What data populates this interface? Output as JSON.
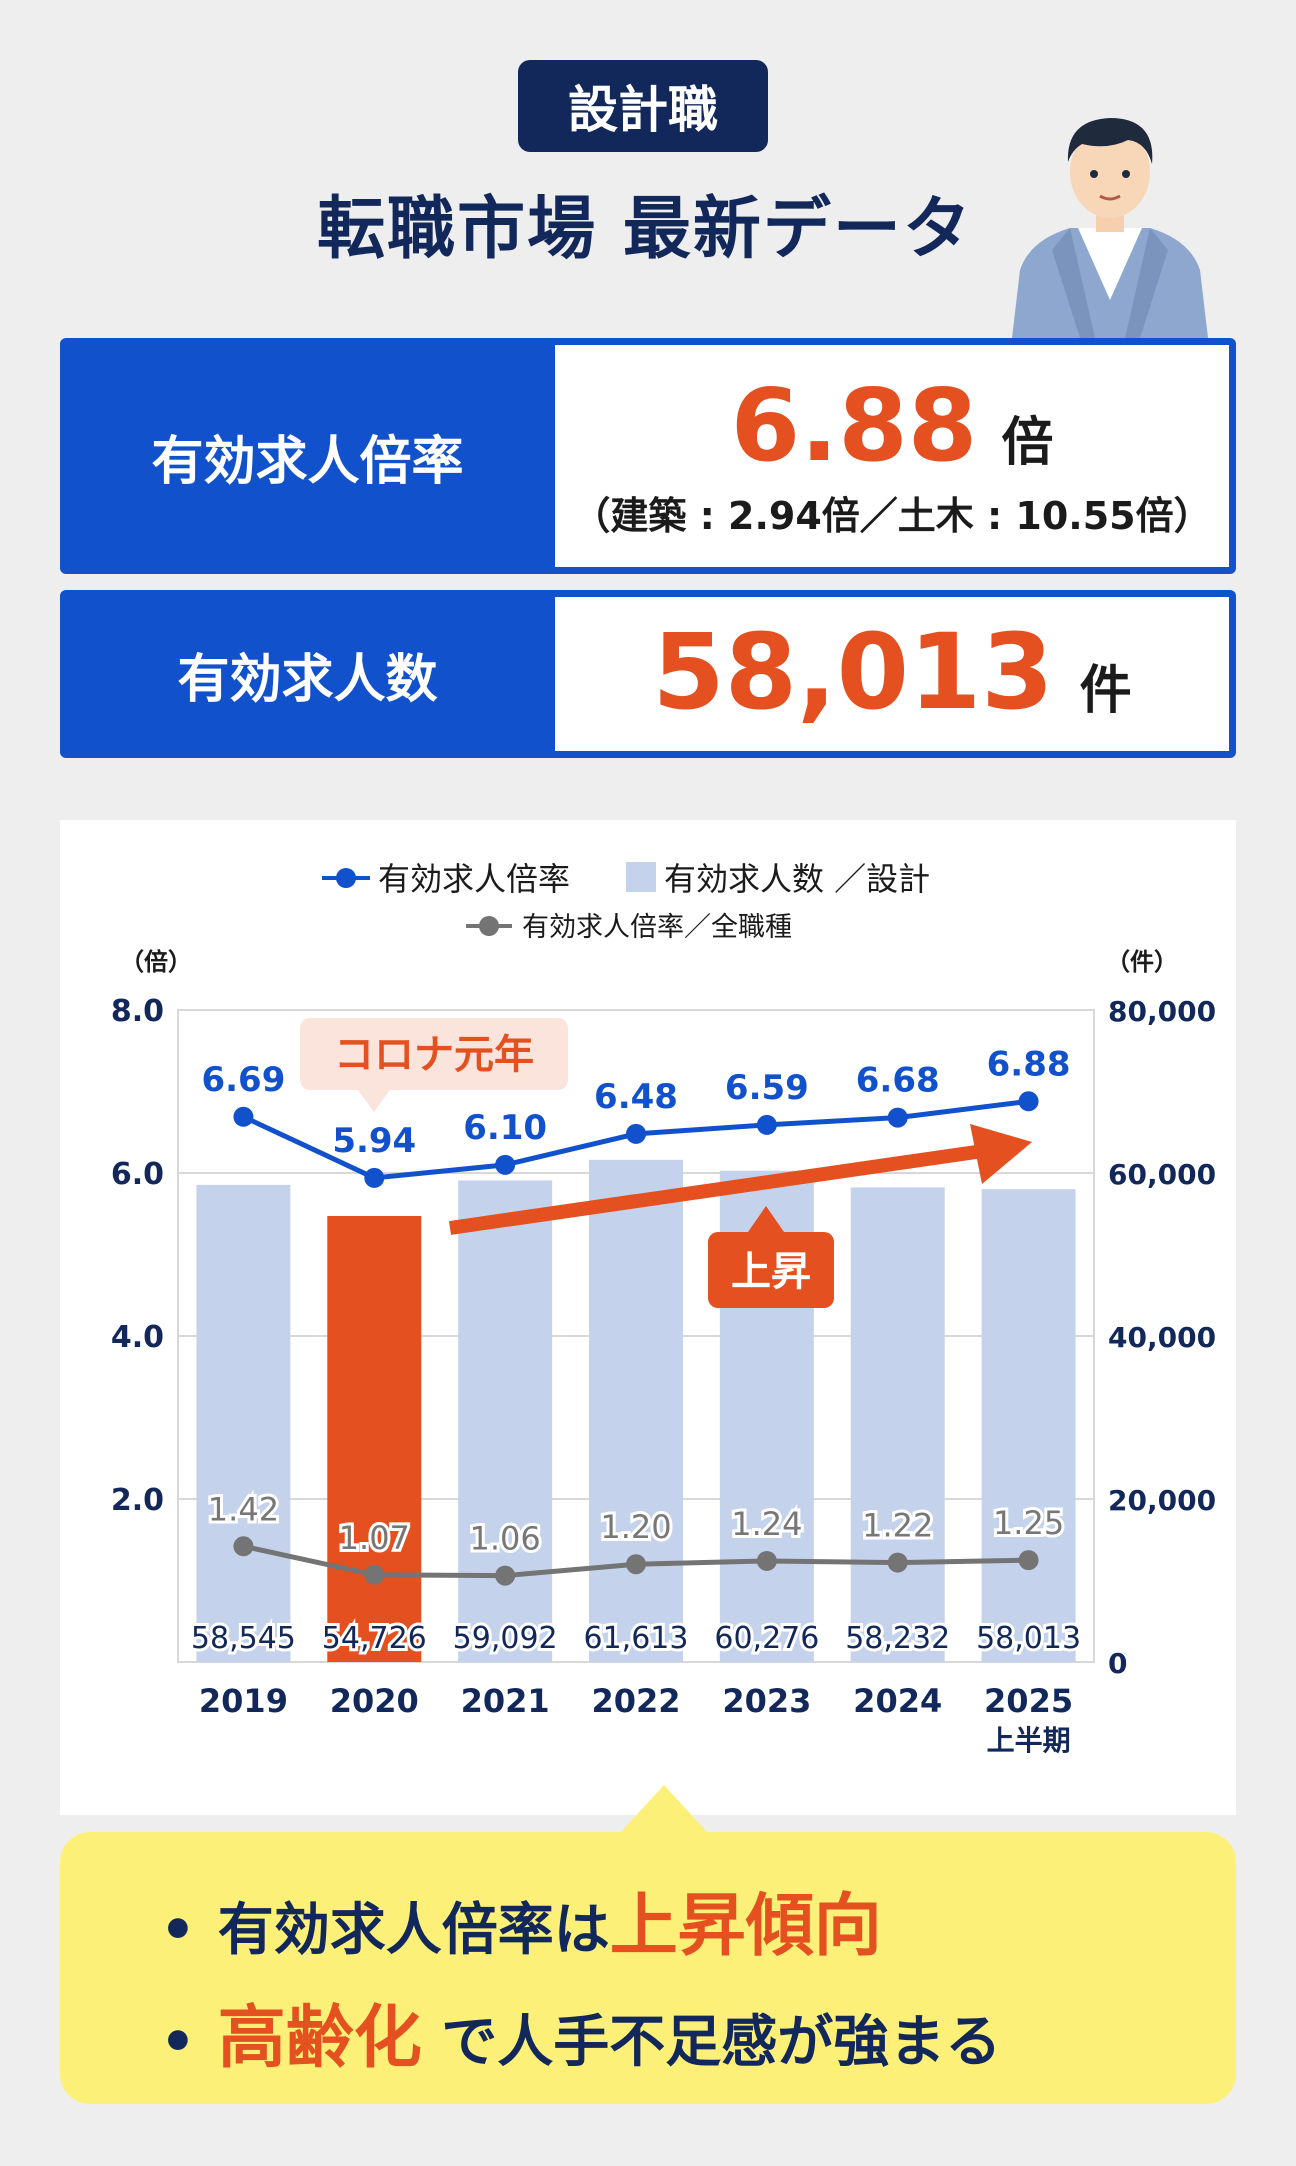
{
  "header": {
    "badge": "設計職",
    "title": "転職市場 最新データ"
  },
  "stats": {
    "ratio": {
      "label": "有効求人倍率",
      "value": "6.88",
      "unit": "倍",
      "detail": "（建築 : 2.94倍／土木 : 10.55倍）"
    },
    "openings": {
      "label": "有効求人数",
      "value": "58,013",
      "unit": "件"
    }
  },
  "chart_data": {
    "type": "bar",
    "categories": [
      "2019",
      "2020",
      "2021",
      "2022",
      "2023",
      "2024",
      "2025"
    ],
    "category_sublabels": [
      "",
      "",
      "",
      "",
      "",
      "",
      "上半期"
    ],
    "legend": {
      "ratio_line": "有効求人倍率",
      "bars": "有効求人数 ／設計",
      "all_line": "有効求人倍率／全職種"
    },
    "left_unit": "（倍）",
    "right_unit": "（件）",
    "ylim_left": [
      0,
      8
    ],
    "ylim_right": [
      0,
      80000
    ],
    "left_ticks": [
      "8.0",
      "6.0",
      "4.0",
      "2.0"
    ],
    "right_ticks": [
      "80,000",
      "60,000",
      "40,000",
      "20,000",
      "0"
    ],
    "series": [
      {
        "name": "有効求人数 ／設計",
        "kind": "bar",
        "axis": "right",
        "values": [
          58545,
          54726,
          59092,
          61613,
          60276,
          58232,
          58013
        ],
        "labels": [
          "58,545",
          "54,726",
          "59,092",
          "61,613",
          "60,276",
          "58,232",
          "58,013"
        ],
        "color": "#c4d3eb",
        "highlight_index": 1,
        "highlight_color": "#e4501f"
      },
      {
        "name": "有効求人倍率",
        "kind": "line",
        "axis": "left",
        "values": [
          6.69,
          5.94,
          6.1,
          6.48,
          6.59,
          6.68,
          6.88
        ],
        "labels": [
          "6.69",
          "5.94",
          "6.10",
          "6.48",
          "6.59",
          "6.68",
          "6.88"
        ],
        "color": "#1152cc"
      },
      {
        "name": "有効求人倍率／全職種",
        "kind": "line",
        "axis": "left",
        "values": [
          1.42,
          1.07,
          1.06,
          1.2,
          1.24,
          1.22,
          1.25
        ],
        "labels": [
          "1.42",
          "1.07",
          "1.06",
          "1.20",
          "1.24",
          "1.22",
          "1.25"
        ],
        "color": "#747474"
      }
    ],
    "annotations": {
      "corona": "コロナ元年",
      "rise": "上昇"
    }
  },
  "summary": {
    "line1_prefix": "有効求人倍率は",
    "line1_highlight": "上昇傾向",
    "line2_highlight": "高齢化",
    "line2_suffix": " で人手不足感が強まる"
  },
  "colors": {
    "navy": "#13285a",
    "blue": "#1152cc",
    "orange": "#e4501f",
    "yellow": "#fdf079"
  }
}
